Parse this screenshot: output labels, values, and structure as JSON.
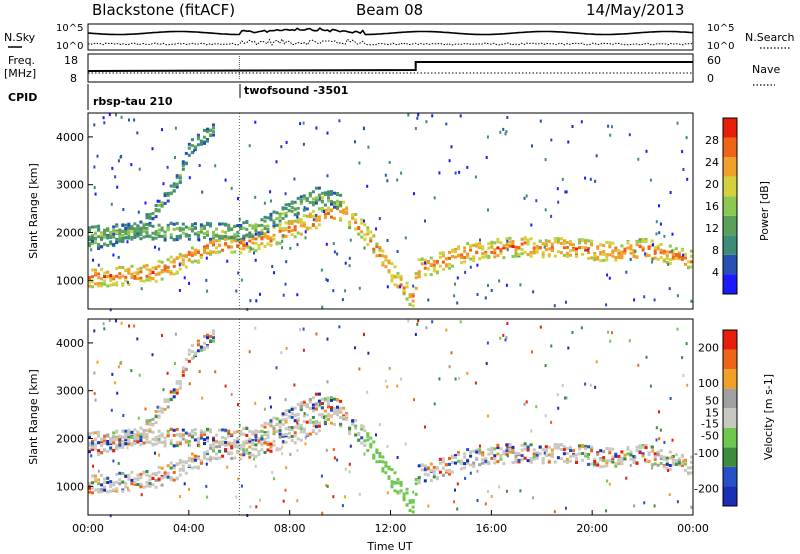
{
  "header": {
    "station": "Blackstone (fitACF)",
    "beam": "Beam 08",
    "date": "14/May/2013"
  },
  "left_labels": {
    "nsky": "N.Sky",
    "freq": "Freq.",
    "freq_unit": "[MHz]",
    "cpid": "CPID"
  },
  "right_labels": {
    "nsearch": "N.Search",
    "nave": "Nave"
  },
  "nsky_ticks": [
    "10^5",
    "10^0"
  ],
  "nsearch_ticks": [
    "10^5",
    "10^0"
  ],
  "freq_ticks": [
    "18",
    "8"
  ],
  "nave_ticks": [
    "60",
    "0"
  ],
  "cpid_segments": [
    {
      "label": "rbsp-tau 210",
      "start_hour": 0
    },
    {
      "label": "twofsound -3501",
      "start_hour": 6
    }
  ],
  "colors": {
    "power_scale": [
      "#1a1aff",
      "#2850b4",
      "#3c8c78",
      "#5aa05a",
      "#8cc850",
      "#d2d23c",
      "#f0a028",
      "#f06418",
      "#e61e0a"
    ],
    "velocity_scale": [
      "#1a2eb4",
      "#2850c8",
      "#3c8c3c",
      "#6ec850",
      "#c8c8c0",
      "#a0a0a0",
      "#f0a028",
      "#f06418",
      "#e61e0a"
    ]
  },
  "chart_data": [
    {
      "type": "heatmap",
      "panel": "power",
      "ylabel": "Slant Range [km]",
      "yticks": [
        "4000",
        "3000",
        "2000",
        "1000"
      ],
      "ylim": [
        400,
        4500
      ],
      "xlim": [
        0,
        24
      ],
      "colorbar_label": "Power [dB]",
      "colorbar_ticks": [
        "28",
        "24",
        "20",
        "16",
        "12",
        "8",
        "4"
      ],
      "colorbar_range": [
        0,
        32
      ],
      "echo_bands": [
        {
          "name": "main",
          "points": [
            [
              0,
              1100
            ],
            [
              2,
              1150
            ],
            [
              3,
              1250
            ],
            [
              4,
              1550
            ],
            [
              5,
              1750
            ],
            [
              6,
              1800
            ],
            [
              7,
              1900
            ],
            [
              8,
              2100
            ],
            [
              9,
              2300
            ],
            [
              10,
              2500
            ],
            [
              11,
              2000
            ],
            [
              12,
              1200
            ],
            [
              12.9,
              600
            ],
            [
              13,
              1250
            ],
            [
              15,
              1600
            ],
            [
              17,
              1750
            ],
            [
              19,
              1700
            ],
            [
              21,
              1600
            ],
            [
              22,
              1700
            ],
            [
              24,
              1450
            ]
          ],
          "width": 260,
          "level": 24
        },
        {
          "name": "upper",
          "points": [
            [
              0,
              1800
            ],
            [
              1,
              1900
            ],
            [
              2,
              2100
            ],
            [
              3,
              2700
            ],
            [
              3.6,
              3200
            ],
            [
              4,
              3800
            ],
            [
              5,
              4200
            ]
          ],
          "width": 180,
          "level": 12
        },
        {
          "name": "secondary",
          "points": [
            [
              0,
              2000
            ],
            [
              2,
              2050
            ],
            [
              4,
              2050
            ],
            [
              6,
              2050
            ],
            [
              7,
              2200
            ],
            [
              8,
              2500
            ],
            [
              9,
              2800
            ],
            [
              10,
              2700
            ]
          ],
          "width": 220,
          "level": 14
        }
      ]
    },
    {
      "type": "heatmap",
      "panel": "velocity",
      "ylabel": "Slant Range [km]",
      "yticks": [
        "4000",
        "3000",
        "2000",
        "1000"
      ],
      "ylim": [
        400,
        4500
      ],
      "xlim": [
        0,
        24
      ],
      "colorbar_label": "Velocity [m s-1]",
      "colorbar_ticks": [
        "200",
        "100",
        "50",
        "15",
        "-15",
        "-50",
        "-100",
        "-200"
      ],
      "colorbar_range": [
        -250,
        250
      ],
      "xticks": [
        "00:00",
        "04:00",
        "08:00",
        "12:00",
        "16:00",
        "20:00",
        "00:00"
      ],
      "xlabel": "Time UT"
    }
  ]
}
